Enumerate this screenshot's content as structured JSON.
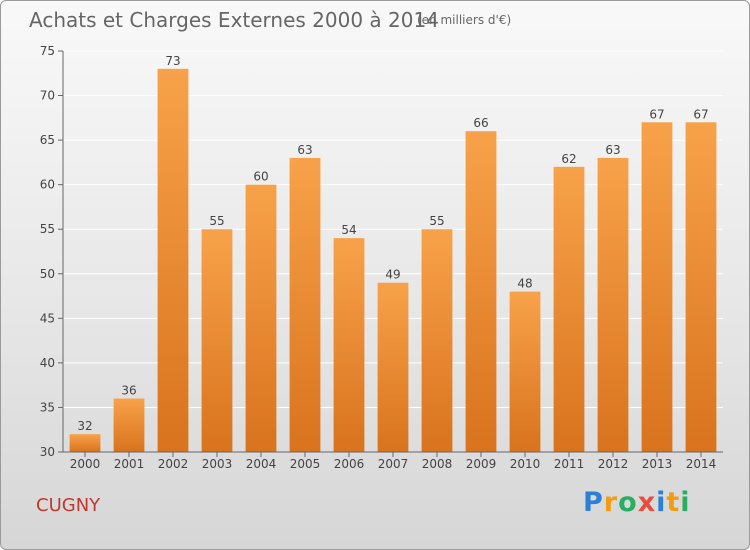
{
  "title": "Achats et Charges Externes 2000 à 2014",
  "subtitle": "(en milliers d'€)",
  "commune": "CUGNY",
  "logo": {
    "letters": [
      {
        "ch": "P",
        "color": "#2b7fd6"
      },
      {
        "ch": "r",
        "color": "#f39c12"
      },
      {
        "ch": "o",
        "color": "#27ae60"
      },
      {
        "ch": "x",
        "color": "#e74c3c"
      },
      {
        "ch": "i",
        "color": "#2b7fd6"
      },
      {
        "ch": "t",
        "color": "#f39c12"
      },
      {
        "ch": "i",
        "color": "#27ae60"
      }
    ]
  },
  "chart_data": {
    "type": "bar",
    "title": "Achats et Charges Externes 2000 à 2014",
    "subtitle": "(en milliers d'€)",
    "categories": [
      "2000",
      "2001",
      "2002",
      "2003",
      "2004",
      "2005",
      "2006",
      "2007",
      "2008",
      "2009",
      "2010",
      "2011",
      "2012",
      "2013",
      "2014"
    ],
    "values": [
      32,
      36,
      73,
      55,
      60,
      63,
      54,
      49,
      55,
      66,
      48,
      62,
      63,
      67,
      67
    ],
    "ylim": [
      30,
      75
    ],
    "yticks": [
      30,
      35,
      40,
      45,
      50,
      55,
      60,
      65,
      70,
      75
    ],
    "grid": true,
    "bar_color_top": "#f7a24a",
    "bar_color_bottom": "#d9731d"
  }
}
